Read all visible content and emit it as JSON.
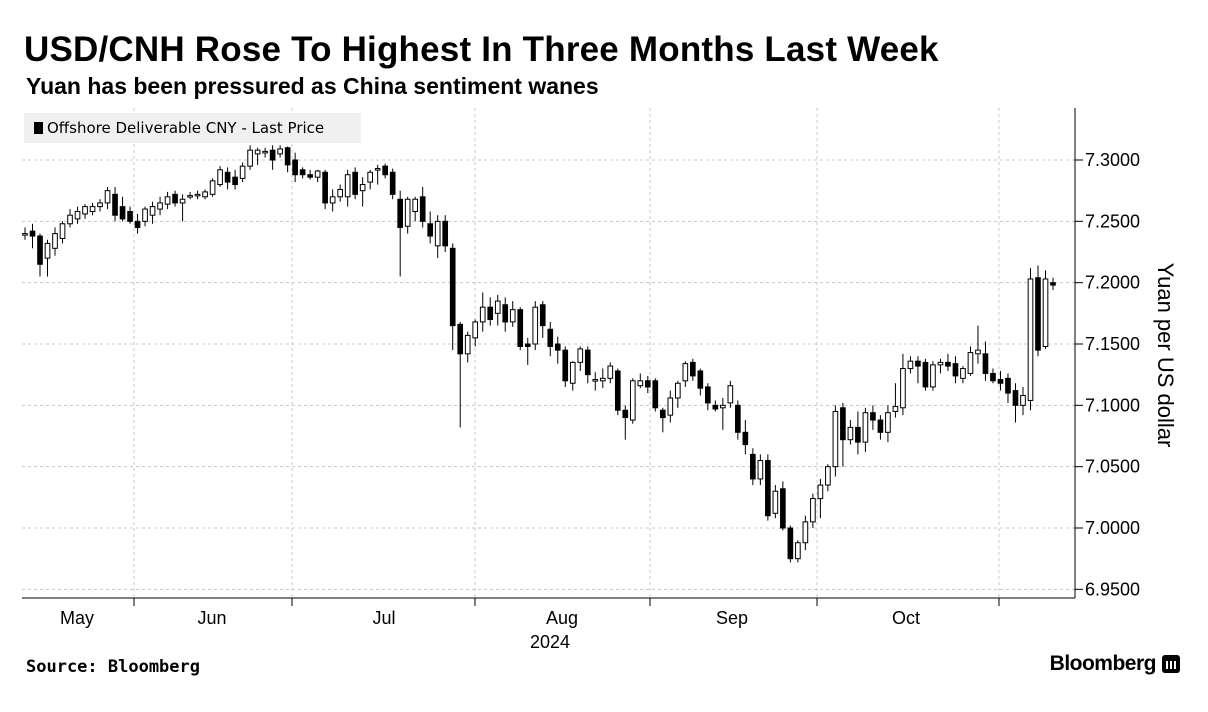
{
  "title": "USD/CNH Rose To Highest In Three Months Last Week",
  "subtitle": "Yuan has been pressured as China sentiment wanes",
  "source": "Source: Bloomberg",
  "brand": "Bloomberg",
  "chart_data": {
    "type": "candlestick",
    "legend": {
      "label": "Offshore Deliverable CNY - Last Price",
      "placement": "top-left"
    },
    "ylabel": "Yuan per US dollar",
    "y_axis_position": "right",
    "ylim": [
      6.945,
      7.345
    ],
    "yticks": [
      6.95,
      7.0,
      7.05,
      7.1,
      7.15,
      7.2,
      7.25,
      7.3
    ],
    "ytick_labels": [
      "6.9500",
      "7.0000",
      "7.0500",
      "7.1000",
      "7.1500",
      "7.2000",
      "7.2500",
      "7.3000"
    ],
    "x_months": [
      "May",
      "Jun",
      "Jul",
      "Aug",
      "Sep",
      "Oct"
    ],
    "x_year": "2024",
    "grid": true,
    "candles_ohlc": [
      [
        7.24,
        7.245,
        7.235,
        7.24
      ],
      [
        7.242,
        7.248,
        7.228,
        7.238
      ],
      [
        7.238,
        7.24,
        7.205,
        7.215
      ],
      [
        7.22,
        7.235,
        7.205,
        7.232
      ],
      [
        7.228,
        7.245,
        7.222,
        7.24
      ],
      [
        7.236,
        7.25,
        7.232,
        7.248
      ],
      [
        7.248,
        7.26,
        7.245,
        7.255
      ],
      [
        7.252,
        7.262,
        7.248,
        7.258
      ],
      [
        7.256,
        7.264,
        7.252,
        7.262
      ],
      [
        7.258,
        7.265,
        7.255,
        7.262
      ],
      [
        7.262,
        7.268,
        7.258,
        7.265
      ],
      [
        7.265,
        7.278,
        7.26,
        7.275
      ],
      [
        7.272,
        7.278,
        7.25,
        7.255
      ],
      [
        7.262,
        7.27,
        7.25,
        7.252
      ],
      [
        7.258,
        7.262,
        7.248,
        7.25
      ],
      [
        7.25,
        7.256,
        7.24,
        7.245
      ],
      [
        7.25,
        7.262,
        7.246,
        7.26
      ],
      [
        7.255,
        7.266,
        7.248,
        7.262
      ],
      [
        7.26,
        7.27,
        7.255,
        7.265
      ],
      [
        7.264,
        7.274,
        7.26,
        7.27
      ],
      [
        7.272,
        7.275,
        7.262,
        7.265
      ],
      [
        7.265,
        7.272,
        7.25,
        7.268
      ],
      [
        7.27,
        7.274,
        7.268,
        7.271
      ],
      [
        7.271,
        7.275,
        7.268,
        7.272
      ],
      [
        7.27,
        7.276,
        7.268,
        7.274
      ],
      [
        7.272,
        7.285,
        7.27,
        7.283
      ],
      [
        7.28,
        7.295,
        7.278,
        7.292
      ],
      [
        7.29,
        7.294,
        7.276,
        7.282
      ],
      [
        7.286,
        7.292,
        7.276,
        7.28
      ],
      [
        7.285,
        7.298,
        7.282,
        7.295
      ],
      [
        7.295,
        7.312,
        7.292,
        7.308
      ],
      [
        7.305,
        7.31,
        7.296,
        7.308
      ],
      [
        7.306,
        7.31,
        7.302,
        7.307
      ],
      [
        7.308,
        7.312,
        7.292,
        7.3
      ],
      [
        7.305,
        7.312,
        7.302,
        7.309
      ],
      [
        7.31,
        7.311,
        7.29,
        7.296
      ],
      [
        7.3,
        7.306,
        7.282,
        7.288
      ],
      [
        7.292,
        7.294,
        7.285,
        7.288
      ],
      [
        7.288,
        7.292,
        7.284,
        7.286
      ],
      [
        7.286,
        7.292,
        7.282,
        7.291
      ],
      [
        7.29,
        7.292,
        7.26,
        7.265
      ],
      [
        7.265,
        7.276,
        7.258,
        7.27
      ],
      [
        7.27,
        7.28,
        7.266,
        7.276
      ],
      [
        7.27,
        7.292,
        7.262,
        7.288
      ],
      [
        7.29,
        7.294,
        7.268,
        7.272
      ],
      [
        7.275,
        7.286,
        7.262,
        7.28
      ],
      [
        7.282,
        7.292,
        7.276,
        7.29
      ],
      [
        7.292,
        7.296,
        7.28,
        7.293
      ],
      [
        7.295,
        7.297,
        7.285,
        7.288
      ],
      [
        7.29,
        7.293,
        7.268,
        7.272
      ],
      [
        7.268,
        7.275,
        7.205,
        7.245
      ],
      [
        7.246,
        7.27,
        7.24,
        7.268
      ],
      [
        7.258,
        7.27,
        7.25,
        7.268
      ],
      [
        7.27,
        7.278,
        7.245,
        7.25
      ],
      [
        7.248,
        7.258,
        7.232,
        7.238
      ],
      [
        7.23,
        7.255,
        7.22,
        7.25
      ],
      [
        7.25,
        7.255,
        7.225,
        7.23
      ],
      [
        7.228,
        7.232,
        7.145,
        7.165
      ],
      [
        7.166,
        7.168,
        7.082,
        7.142
      ],
      [
        7.142,
        7.16,
        7.135,
        7.157
      ],
      [
        7.155,
        7.17,
        7.148,
        7.168
      ],
      [
        7.168,
        7.192,
        7.16,
        7.18
      ],
      [
        7.18,
        7.188,
        7.165,
        7.17
      ],
      [
        7.175,
        7.19,
        7.165,
        7.185
      ],
      [
        7.182,
        7.188,
        7.16,
        7.168
      ],
      [
        7.168,
        7.185,
        7.164,
        7.178
      ],
      [
        7.178,
        7.18,
        7.145,
        7.148
      ],
      [
        7.15,
        7.155,
        7.133,
        7.148
      ],
      [
        7.15,
        7.185,
        7.145,
        7.18
      ],
      [
        7.182,
        7.185,
        7.155,
        7.165
      ],
      [
        7.162,
        7.168,
        7.14,
        7.148
      ],
      [
        7.15,
        7.156,
        7.134,
        7.145
      ],
      [
        7.145,
        7.148,
        7.115,
        7.12
      ],
      [
        7.118,
        7.136,
        7.112,
        7.135
      ],
      [
        7.135,
        7.148,
        7.128,
        7.146
      ],
      [
        7.145,
        7.148,
        7.118,
        7.125
      ],
      [
        7.12,
        7.127,
        7.112,
        7.121
      ],
      [
        7.12,
        7.13,
        7.114,
        7.122
      ],
      [
        7.122,
        7.135,
        7.118,
        7.132
      ],
      [
        7.128,
        7.13,
        7.092,
        7.096
      ],
      [
        7.096,
        7.1,
        7.072,
        7.09
      ],
      [
        7.088,
        7.122,
        7.085,
        7.12
      ],
      [
        7.116,
        7.126,
        7.114,
        7.12
      ],
      [
        7.12,
        7.124,
        7.11,
        7.115
      ],
      [
        7.12,
        7.122,
        7.095,
        7.098
      ],
      [
        7.096,
        7.098,
        7.078,
        7.09
      ],
      [
        7.092,
        7.112,
        7.086,
        7.106
      ],
      [
        7.106,
        7.12,
        7.098,
        7.118
      ],
      [
        7.12,
        7.136,
        7.115,
        7.134
      ],
      [
        7.135,
        7.138,
        7.12,
        7.124
      ],
      [
        7.128,
        7.13,
        7.108,
        7.114
      ],
      [
        7.115,
        7.118,
        7.096,
        7.102
      ],
      [
        7.1,
        7.104,
        7.095,
        7.097
      ],
      [
        7.098,
        7.106,
        7.08,
        7.1
      ],
      [
        7.102,
        7.12,
        7.098,
        7.116
      ],
      [
        7.1,
        7.104,
        7.072,
        7.078
      ],
      [
        7.078,
        7.088,
        7.06,
        7.068
      ],
      [
        7.06,
        7.065,
        7.035,
        7.04
      ],
      [
        7.04,
        7.06,
        7.035,
        7.055
      ],
      [
        7.055,
        7.06,
        7.006,
        7.01
      ],
      [
        7.012,
        7.035,
        7.008,
        7.03
      ],
      [
        7.032,
        7.038,
        6.998,
        7.0
      ],
      [
        7.0,
        7.002,
        6.972,
        6.975
      ],
      [
        6.975,
        6.99,
        6.972,
        6.988
      ],
      [
        6.988,
        7.01,
        6.982,
        7.005
      ],
      [
        7.005,
        7.028,
        7.0,
        7.024
      ],
      [
        7.024,
        7.04,
        7.008,
        7.035
      ],
      [
        7.035,
        7.052,
        7.03,
        7.05
      ],
      [
        7.05,
        7.1,
        7.042,
        7.095
      ],
      [
        7.098,
        7.102,
        7.05,
        7.072
      ],
      [
        7.072,
        7.088,
        7.068,
        7.082
      ],
      [
        7.082,
        7.095,
        7.06,
        7.07
      ],
      [
        7.07,
        7.098,
        7.062,
        7.094
      ],
      [
        7.094,
        7.1,
        7.08,
        7.088
      ],
      [
        7.088,
        7.092,
        7.072,
        7.078
      ],
      [
        7.078,
        7.1,
        7.07,
        7.094
      ],
      [
        7.095,
        7.118,
        7.09,
        7.099
      ],
      [
        7.098,
        7.142,
        7.092,
        7.13
      ],
      [
        7.13,
        7.14,
        7.126,
        7.136
      ],
      [
        7.136,
        7.14,
        7.118,
        7.132
      ],
      [
        7.135,
        7.138,
        7.112,
        7.115
      ],
      [
        7.115,
        7.136,
        7.112,
        7.133
      ],
      [
        7.133,
        7.138,
        7.126,
        7.135
      ],
      [
        7.135,
        7.142,
        7.128,
        7.132
      ],
      [
        7.134,
        7.14,
        7.118,
        7.124
      ],
      [
        7.122,
        7.132,
        7.118,
        7.13
      ],
      [
        7.126,
        7.148,
        7.124,
        7.143
      ],
      [
        7.142,
        7.165,
        7.134,
        7.145
      ],
      [
        7.142,
        7.152,
        7.12,
        7.126
      ],
      [
        7.126,
        7.13,
        7.118,
        7.12
      ],
      [
        7.121,
        7.128,
        7.112,
        7.118
      ],
      [
        7.122,
        7.126,
        7.102,
        7.11
      ],
      [
        7.112,
        7.118,
        7.086,
        7.1
      ],
      [
        7.1,
        7.115,
        7.092,
        7.108
      ],
      [
        7.104,
        7.212,
        7.096,
        7.203
      ],
      [
        7.204,
        7.214,
        7.14,
        7.145
      ],
      [
        7.148,
        7.21,
        7.146,
        7.203
      ],
      [
        7.2,
        7.204,
        7.194,
        7.198
      ]
    ]
  }
}
